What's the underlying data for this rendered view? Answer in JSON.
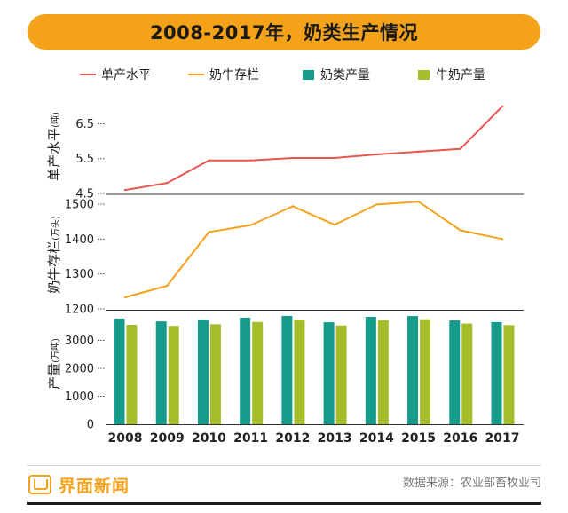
{
  "title": "2008-2017年，奶类生产情况",
  "colors": {
    "yield": "#e8574f",
    "herd": "#f5a21b",
    "dairy": "#149b8a",
    "milk": "#a6bd2b",
    "title_bg": "#f5a21b"
  },
  "legend": [
    {
      "label": "单产水平",
      "kind": "line",
      "color": "#e8574f"
    },
    {
      "label": "奶牛存栏",
      "kind": "line",
      "color": "#f5a21b"
    },
    {
      "label": "奶类产量",
      "kind": "box",
      "color": "#149b8a"
    },
    {
      "label": "牛奶产量",
      "kind": "box",
      "color": "#a6bd2b"
    }
  ],
  "chart_data": [
    {
      "type": "line",
      "ylabel": "单产水平",
      "yunit": "(吨)",
      "ylim": [
        4.5,
        7.2
      ],
      "yticks": [
        4.5,
        5.5,
        6.5
      ],
      "x": [
        "2008",
        "2009",
        "2010",
        "2011",
        "2012",
        "2013",
        "2014",
        "2015",
        "2016",
        "2017"
      ],
      "series": [
        {
          "name": "单产水平",
          "values": [
            4.6,
            4.8,
            5.45,
            5.45,
            5.52,
            5.52,
            5.62,
            5.7,
            5.78,
            7.0
          ]
        }
      ]
    },
    {
      "type": "line",
      "ylabel": "奶牛存栏",
      "yunit": "(万头)",
      "ylim": [
        1200,
        1500
      ],
      "yticks": [
        1200,
        1300,
        1400,
        1500
      ],
      "x": [
        "2008",
        "2009",
        "2010",
        "2011",
        "2012",
        "2013",
        "2014",
        "2015",
        "2016",
        "2017"
      ],
      "series": [
        {
          "name": "奶牛存栏",
          "values": [
            1233,
            1266,
            1420,
            1440,
            1494,
            1441,
            1499,
            1507,
            1425,
            1400
          ]
        }
      ]
    },
    {
      "type": "bar",
      "ylabel": "产量",
      "yunit": "(万吨)",
      "ylim": [
        0,
        4000
      ],
      "yticks": [
        0,
        1000,
        2000,
        3000
      ],
      "categories": [
        "2008",
        "2009",
        "2010",
        "2011",
        "2012",
        "2013",
        "2014",
        "2015",
        "2016",
        "2017"
      ],
      "series": [
        {
          "name": "奶类产量",
          "values": [
            3781,
            3677,
            3748,
            3811,
            3875,
            3649,
            3841,
            3870,
            3712,
            3655
          ]
        },
        {
          "name": "牛奶产量",
          "values": [
            3556,
            3518,
            3576,
            3657,
            3744,
            3531,
            3725,
            3755,
            3602,
            3545
          ]
        }
      ]
    }
  ],
  "footer": {
    "brand": "界面新闻",
    "source": "数据来源：农业部畜牧业司"
  }
}
